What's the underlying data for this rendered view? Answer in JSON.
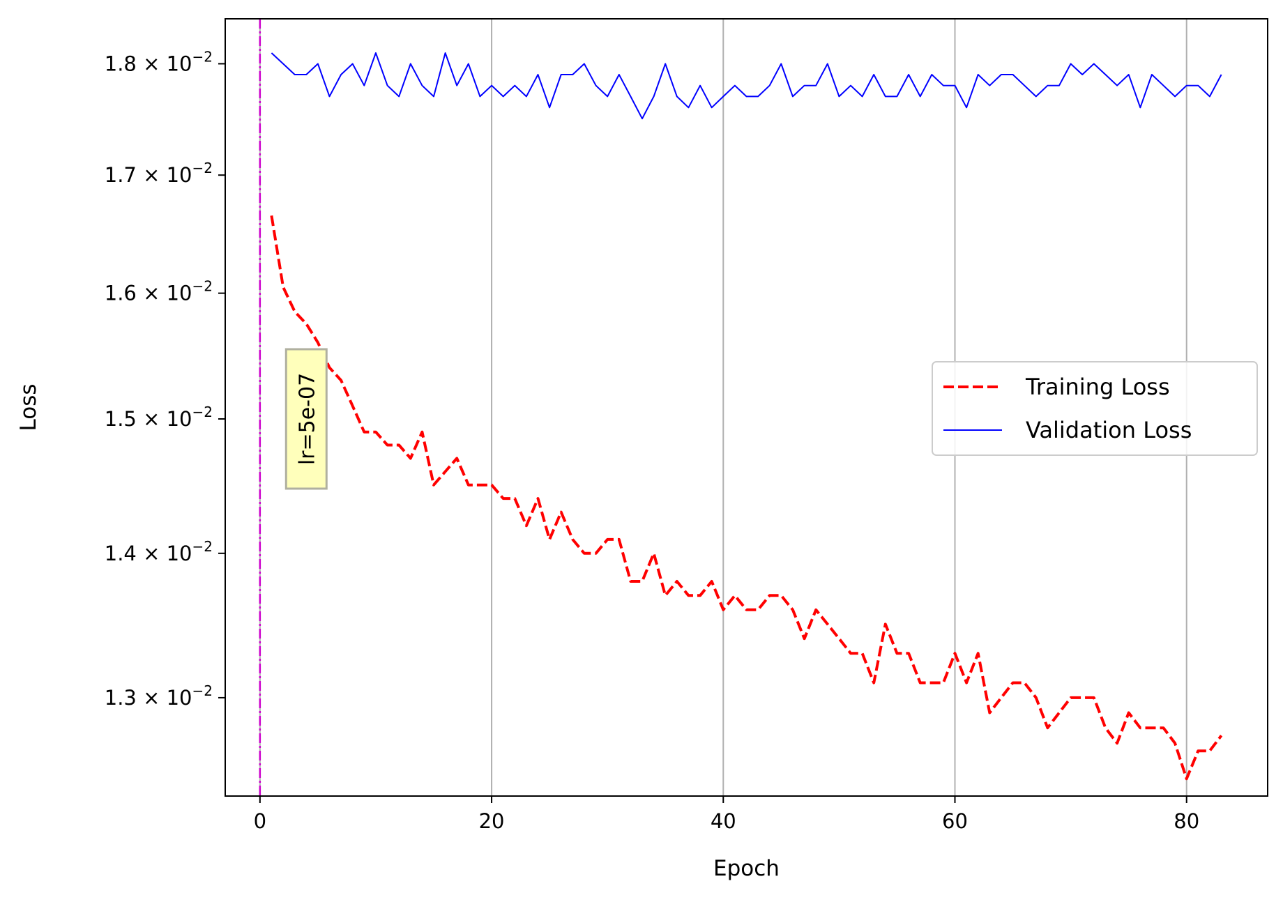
{
  "chart_data": {
    "type": "line",
    "xlabel": "Epoch",
    "ylabel": "Loss",
    "xlim": [
      -3,
      87
    ],
    "ylim": [
      0.01236,
      0.01842
    ],
    "y_scale": "log",
    "grid": "x-only",
    "legend_position": "center-right",
    "x_ticks": [
      {
        "value": 0,
        "label": "0"
      },
      {
        "value": 20,
        "label": "20"
      },
      {
        "value": 40,
        "label": "40"
      },
      {
        "value": 60,
        "label": "60"
      },
      {
        "value": 80,
        "label": "80"
      }
    ],
    "y_ticks": [
      {
        "value": 0.013,
        "mantissa": "1.3",
        "exponent": "−2"
      },
      {
        "value": 0.014,
        "mantissa": "1.4",
        "exponent": "−2"
      },
      {
        "value": 0.015,
        "mantissa": "1.5",
        "exponent": "−2"
      },
      {
        "value": 0.016,
        "mantissa": "1.6",
        "exponent": "−2"
      },
      {
        "value": 0.017,
        "mantissa": "1.7",
        "exponent": "−2"
      },
      {
        "value": 0.018,
        "mantissa": "1.8",
        "exponent": "−2"
      }
    ],
    "series": [
      {
        "name": "Training Loss",
        "color": "#ff0000",
        "style": "dashed",
        "x_start": 1,
        "values": [
          0.01665,
          0.01605,
          0.01585,
          0.01575,
          0.0156,
          0.0154,
          0.0153,
          0.0151,
          0.0149,
          0.0149,
          0.0148,
          0.0148,
          0.0147,
          0.0149,
          0.0145,
          0.0146,
          0.0147,
          0.0145,
          0.0145,
          0.0145,
          0.0144,
          0.0144,
          0.0142,
          0.0144,
          0.0141,
          0.0143,
          0.0141,
          0.014,
          0.014,
          0.0141,
          0.0141,
          0.0138,
          0.0138,
          0.014,
          0.0137,
          0.0138,
          0.0137,
          0.0137,
          0.0138,
          0.0136,
          0.0137,
          0.0136,
          0.0136,
          0.0137,
          0.0137,
          0.0136,
          0.0134,
          0.0136,
          0.0135,
          0.0134,
          0.0133,
          0.0133,
          0.0131,
          0.0135,
          0.0133,
          0.0133,
          0.0131,
          0.0131,
          0.0131,
          0.0133,
          0.0131,
          0.0133,
          0.0129,
          0.013,
          0.0131,
          0.0131,
          0.013,
          0.0128,
          0.0129,
          0.013,
          0.013,
          0.013,
          0.0128,
          0.0127,
          0.0129,
          0.0128,
          0.0128,
          0.0128,
          0.0127,
          0.01247,
          0.01265,
          0.01265,
          0.01275
        ]
      },
      {
        "name": "Validation Loss",
        "color": "#0000ff",
        "style": "solid",
        "x_start": 1,
        "values": [
          0.0181,
          0.018,
          0.0179,
          0.0179,
          0.018,
          0.0177,
          0.0179,
          0.018,
          0.0178,
          0.0181,
          0.0178,
          0.0177,
          0.018,
          0.0178,
          0.0177,
          0.0181,
          0.0178,
          0.018,
          0.0177,
          0.0178,
          0.0177,
          0.0178,
          0.0177,
          0.0179,
          0.0176,
          0.0179,
          0.0179,
          0.018,
          0.0178,
          0.0177,
          0.0179,
          0.0177,
          0.0175,
          0.0177,
          0.018,
          0.0177,
          0.0176,
          0.0178,
          0.0176,
          0.0177,
          0.0178,
          0.0177,
          0.0177,
          0.0178,
          0.018,
          0.0177,
          0.0178,
          0.0178,
          0.018,
          0.0177,
          0.0178,
          0.0177,
          0.0179,
          0.0177,
          0.0177,
          0.0179,
          0.0177,
          0.0179,
          0.0178,
          0.0178,
          0.0176,
          0.0179,
          0.0178,
          0.0179,
          0.0179,
          0.0178,
          0.0177,
          0.0178,
          0.0178,
          0.018,
          0.0179,
          0.018,
          0.0179,
          0.0178,
          0.0179,
          0.0176,
          0.0179,
          0.0178,
          0.0177,
          0.0178,
          0.0178,
          0.0177,
          0.0179
        ]
      }
    ],
    "vline": {
      "x": 0,
      "color": "#cc00cc"
    },
    "annotation": {
      "text": "lr=5e-07",
      "x": 4,
      "y": 0.015
    }
  }
}
